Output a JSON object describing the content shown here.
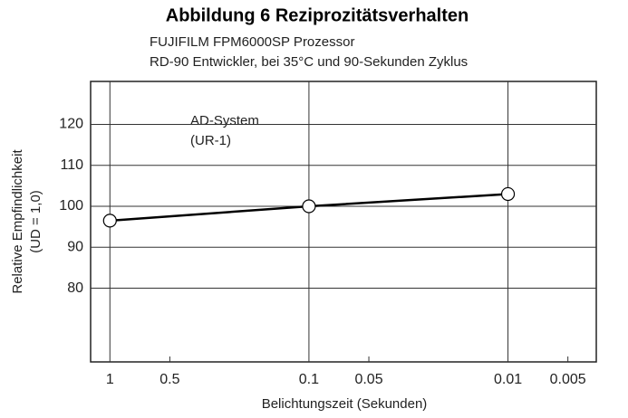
{
  "chart_data": {
    "type": "line",
    "title": "Abbildung 6 Reziprozitätsverhalten",
    "subtitle": [
      "FUJIFILM FPM6000SP Prozessor",
      "RD-90 Entwickler, bei 35°C und 90-Sekunden Zyklus"
    ],
    "annotation": [
      "AD-System",
      "(UR-1)"
    ],
    "x_label": "Belichtungszeit (Sekunden)",
    "y_label": [
      "Relative Empfindlichkeit",
      "(UD = 1,0)"
    ],
    "x": [
      1,
      0.1,
      0.01
    ],
    "series": [
      {
        "name": "AD-System (UR-1)",
        "color": "#000000",
        "values": [
          96.5,
          100,
          103
        ]
      }
    ],
    "xscale": "log",
    "xlim": [
      1.25,
      0.0036
    ],
    "xticks": [
      1,
      0.5,
      0.1,
      0.05,
      0.01,
      0.005
    ],
    "ylim": [
      62,
      130.5
    ],
    "yticks": [
      80,
      90,
      100,
      110,
      120
    ],
    "grid": true
  }
}
